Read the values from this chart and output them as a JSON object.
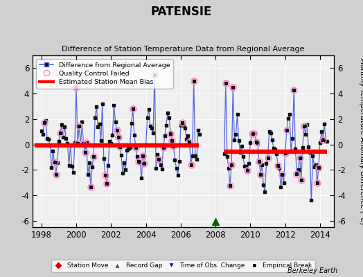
{
  "title": "PATENSIE",
  "subtitle": "Difference of Station Temperature Data from Regional Average",
  "ylabel": "Monthly Temperature Anomaly Difference (°C)",
  "xlim": [
    1997.5,
    2014.8
  ],
  "ylim": [
    -6.5,
    7.0
  ],
  "yticks": [
    -6,
    -4,
    -2,
    0,
    2,
    4,
    6
  ],
  "xticks": [
    1998,
    2000,
    2002,
    2004,
    2006,
    2008,
    2010,
    2012,
    2014
  ],
  "plot_bg": "#f0f0f0",
  "outer_bg": "#d0d0d0",
  "line_color": "#5566dd",
  "marker_color": "#111111",
  "bias_color": "#ff0000",
  "qc_color": "#ff88cc",
  "segment1_bias": -0.1,
  "segment1_start": 1997.6,
  "segment1_end": 2007.05,
  "segment2_bias": -0.55,
  "segment2_start": 2008.5,
  "segment2_end": 2014.4,
  "gap_x": 2008.0,
  "gap_y": -6.05,
  "vline_x": 2008.0,
  "berkeley_earth_label": "Berkeley Earth"
}
